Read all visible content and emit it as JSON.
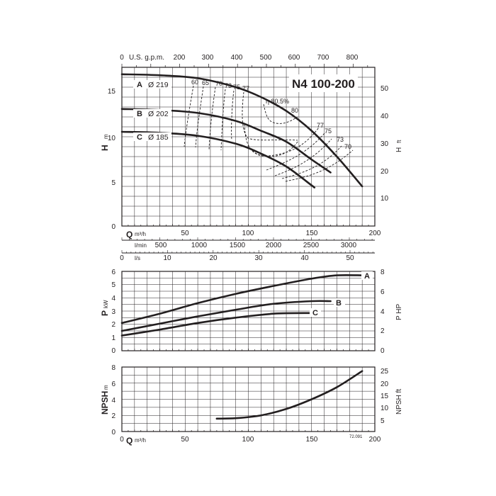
{
  "model": "N4 100-200",
  "figure_code": "72.091",
  "colors": {
    "ink": "#231f20",
    "grid": "#231f20",
    "background": "#ffffff"
  },
  "chart_data": [
    {
      "type": "line",
      "name": "head",
      "title": "N4 100-200",
      "ylabel": "H",
      "ylabel_unit": "m",
      "ylabel_right": "H",
      "ylabel_right_unit": "ft",
      "xlabel": "Q",
      "xlabel_unit": "m³/h",
      "xlim": [
        0,
        200
      ],
      "ylim": [
        0,
        16
      ],
      "x_ticks": [
        0,
        50,
        100,
        150,
        200
      ],
      "y_ticks": [
        0,
        5,
        10,
        15
      ],
      "gpm_axis": {
        "label": "U.S. g.p.m.",
        "ticks": [
          "0",
          "100",
          "200",
          "300",
          "400",
          "500",
          "600",
          "700",
          "800"
        ]
      },
      "lmin_axis": {
        "label": "l/min",
        "ticks": [
          "500",
          "1000",
          "1500",
          "2000",
          "2500",
          "3000"
        ]
      },
      "ft_axis": {
        "ticks": [
          "10",
          "20",
          "30",
          "40",
          "50"
        ]
      },
      "grid": true,
      "series": [
        {
          "name": "A",
          "diameter_label": "Ø 219",
          "x": [
            0,
            30,
            60,
            90,
            110,
            130,
            150,
            170,
            190
          ],
          "y": [
            15.3,
            15.2,
            14.9,
            14.0,
            13.0,
            11.6,
            9.6,
            7.0,
            4.0
          ]
        },
        {
          "name": "B",
          "diameter_label": "Ø 202",
          "x": [
            0,
            30,
            60,
            90,
            110,
            130,
            150,
            165
          ],
          "y": [
            11.8,
            11.7,
            11.4,
            10.6,
            9.6,
            8.5,
            6.7,
            5.4
          ]
        },
        {
          "name": "C",
          "diameter_label": "Ø 185",
          "x": [
            0,
            30,
            60,
            90,
            110,
            130,
            150,
            152
          ],
          "y": [
            9.5,
            9.4,
            9.1,
            8.3,
            7.3,
            6.0,
            4.1,
            3.9
          ]
        }
      ],
      "efficiency_labels": [
        "60",
        "65",
        "70",
        "73",
        "75",
        "77",
        "η 80.5%",
        "80",
        "77",
        "75",
        "73",
        "70"
      ]
    },
    {
      "type": "line",
      "name": "power",
      "ylabel": "P",
      "ylabel_unit": "kW",
      "ylabel_right": "P HP",
      "xlim": [
        0,
        200
      ],
      "ylim": [
        0,
        6
      ],
      "y_ticks": [
        0,
        1,
        2,
        3,
        4,
        5,
        6
      ],
      "hp_axis": {
        "ticks": [
          "0",
          "2",
          "4",
          "6",
          "8"
        ]
      },
      "ls_axis": {
        "label": "l/s",
        "ticks": [
          "10",
          "20",
          "30",
          "40",
          "50"
        ]
      },
      "grid": true,
      "series": [
        {
          "name": "A",
          "x": [
            0,
            30,
            60,
            90,
            120,
            150,
            170,
            190
          ],
          "y": [
            2.1,
            2.8,
            3.6,
            4.3,
            4.9,
            5.45,
            5.7,
            5.7
          ]
        },
        {
          "name": "B",
          "x": [
            0,
            30,
            60,
            90,
            120,
            150,
            165
          ],
          "y": [
            1.5,
            2.05,
            2.6,
            3.1,
            3.55,
            3.75,
            3.75
          ]
        },
        {
          "name": "C",
          "x": [
            0,
            30,
            60,
            90,
            120,
            150
          ],
          "y": [
            1.15,
            1.6,
            2.1,
            2.5,
            2.8,
            2.85
          ]
        }
      ]
    },
    {
      "type": "line",
      "name": "npsh",
      "ylabel": "NPSH",
      "ylabel_unit": "m",
      "ylabel_right": "NPSH ft",
      "xlabel": "Q",
      "xlabel_unit": "m³/h",
      "xlim": [
        0,
        200
      ],
      "ylim": [
        0,
        8
      ],
      "x_ticks": [
        0,
        50,
        100,
        150,
        200
      ],
      "y_ticks": [
        0,
        2,
        4,
        6,
        8
      ],
      "ft_axis": {
        "ticks": [
          "5",
          "10",
          "15",
          "20",
          "25"
        ]
      },
      "grid": true,
      "series": [
        {
          "name": "NPSH",
          "x": [
            75,
            90,
            110,
            130,
            150,
            170,
            190
          ],
          "y": [
            1.6,
            1.65,
            2.0,
            2.8,
            4.0,
            5.5,
            7.5
          ]
        }
      ]
    }
  ]
}
